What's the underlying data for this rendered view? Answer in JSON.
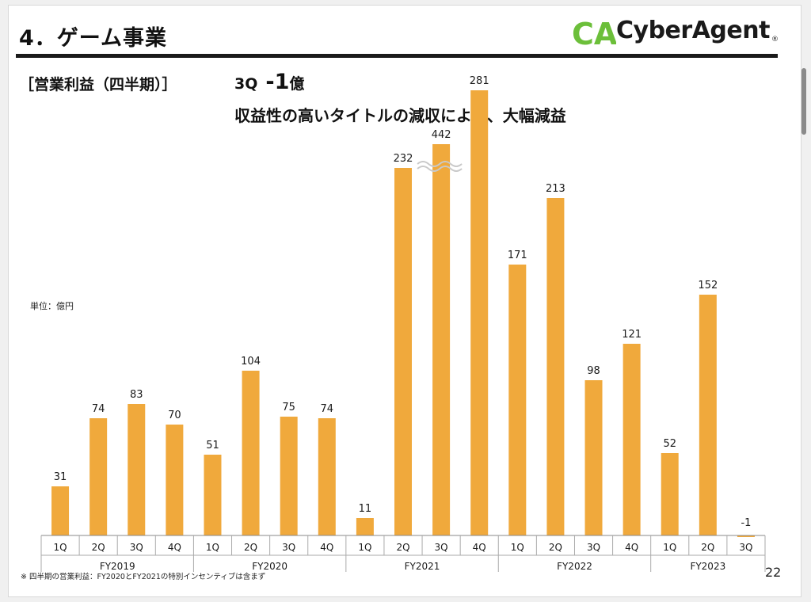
{
  "page": {
    "title": "4．ゲーム事業",
    "logo_text": "CyberAgent",
    "logo_mark": "CA",
    "section_label": "［営業利益（四半期）］",
    "headline_quarter": "3Q",
    "headline_value": "-1",
    "headline_unit": "億",
    "subheadline": "収益性の高いタイトルの減収により、大幅減益",
    "unit_label": "単位：億円",
    "footnote": "※ 四半期の営業利益：FY2020とFY2021の特別インセンティブは含まず",
    "page_number": "22",
    "accent_color": "#f0a93c",
    "logo_green": "#6cbf3a"
  },
  "chart_data": {
    "type": "bar",
    "title": "",
    "xlabel": "",
    "ylabel": "",
    "unit": "億円",
    "categories": [
      "1Q",
      "2Q",
      "3Q",
      "4Q",
      "1Q",
      "2Q",
      "3Q",
      "4Q",
      "1Q",
      "2Q",
      "3Q",
      "4Q",
      "1Q",
      "2Q",
      "3Q",
      "4Q",
      "1Q",
      "2Q",
      "3Q"
    ],
    "groups": [
      {
        "name": "FY2019",
        "size": 4
      },
      {
        "name": "FY2020",
        "size": 4
      },
      {
        "name": "FY2021",
        "size": 4
      },
      {
        "name": "FY2022",
        "size": 4
      },
      {
        "name": "FY2023",
        "size": 3
      }
    ],
    "values": [
      31,
      74,
      83,
      70,
      51,
      104,
      75,
      74,
      11,
      232,
      442,
      281,
      171,
      213,
      98,
      121,
      52,
      152,
      -1
    ],
    "broken_axis_bars": [
      10
    ],
    "bar_color": "#f0a93c",
    "grid": false,
    "legend": "none"
  }
}
